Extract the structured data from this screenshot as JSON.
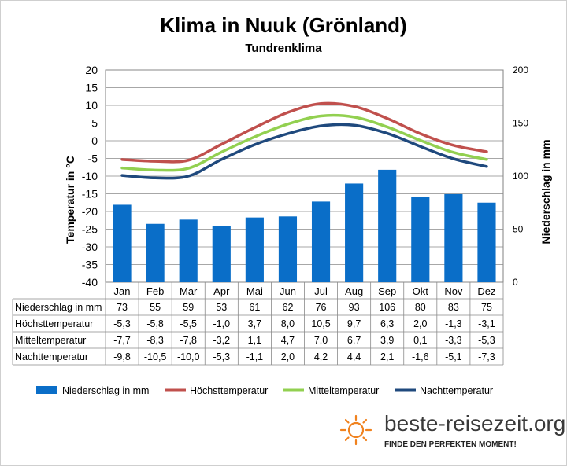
{
  "title": "Klima in Nuuk (Grönland)",
  "subtitle": "Tundrenklima",
  "brand": {
    "name": "beste-reisezeit.org",
    "tagline": "FINDE DEN PERFEKTEN MOMENT!"
  },
  "colors": {
    "precip": "#0a6ec8",
    "high": "#c0504d",
    "mean": "#92d050",
    "low": "#1f497d"
  },
  "chart_data": {
    "type": "bar",
    "categories": [
      "Jan",
      "Feb",
      "Mar",
      "Apr",
      "Mai",
      "Jun",
      "Jul",
      "Aug",
      "Sep",
      "Okt",
      "Nov",
      "Dez"
    ],
    "y_left": {
      "label": "Temperatur in °C",
      "lim": [
        -40,
        20
      ],
      "ticks": [
        20,
        15,
        10,
        5,
        0,
        -5,
        -10,
        -15,
        -20,
        -25,
        -30,
        -35,
        -40
      ]
    },
    "y_right": {
      "label": "Niederschlag in mm",
      "lim": [
        0,
        200
      ],
      "ticks": [
        200,
        150,
        100,
        50,
        0
      ]
    },
    "series": [
      {
        "name": "Niederschlag in mm",
        "type": "bar",
        "axis": "right",
        "values": [
          73,
          55,
          59,
          53,
          61,
          62,
          76,
          93,
          106,
          80,
          83,
          75
        ],
        "labels": [
          "73",
          "55",
          "59",
          "53",
          "61",
          "62",
          "76",
          "93",
          "106",
          "80",
          "83",
          "75"
        ]
      },
      {
        "name": "Höchsttemperatur",
        "type": "line",
        "axis": "left",
        "values": [
          -5.3,
          -5.8,
          -5.5,
          -1.0,
          3.7,
          8.0,
          10.5,
          9.7,
          6.3,
          2.0,
          -1.3,
          -3.1
        ],
        "labels": [
          "-5,3",
          "-5,8",
          "-5,5",
          "-1,0",
          "3,7",
          "8,0",
          "10,5",
          "9,7",
          "6,3",
          "2,0",
          "-1,3",
          "-3,1"
        ]
      },
      {
        "name": "Mitteltemperatur",
        "type": "line",
        "axis": "left",
        "values": [
          -7.7,
          -8.3,
          -7.8,
          -3.2,
          1.1,
          4.7,
          7.0,
          6.7,
          3.9,
          0.1,
          -3.3,
          -5.3
        ],
        "labels": [
          "-7,7",
          "-8,3",
          "-7,8",
          "-3,2",
          "1,1",
          "4,7",
          "7,0",
          "6,7",
          "3,9",
          "0,1",
          "-3,3",
          "-5,3"
        ]
      },
      {
        "name": "Nachttemperatur",
        "type": "line",
        "axis": "left",
        "values": [
          -9.8,
          -10.5,
          -10.0,
          -5.3,
          -1.1,
          2.0,
          4.2,
          4.4,
          2.1,
          -1.6,
          -5.1,
          -7.3
        ],
        "labels": [
          "-9,8",
          "-10,5",
          "-10,0",
          "-5,3",
          "-1,1",
          "2,0",
          "4,2",
          "4,4",
          "2,1",
          "-1,6",
          "-5,1",
          "-7,3"
        ]
      }
    ],
    "grid": true,
    "legend_position": "bottom"
  }
}
